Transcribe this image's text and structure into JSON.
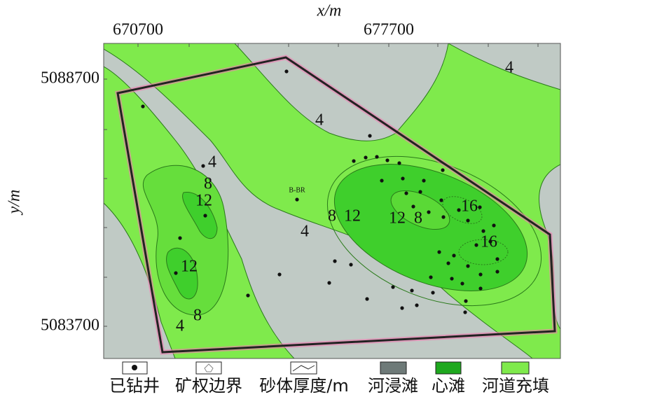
{
  "axes": {
    "x_label": "x/m",
    "x_ticks": [
      "670700",
      "677700"
    ],
    "y_label": "y/m",
    "y_ticks": [
      "5088700",
      "5083700"
    ]
  },
  "contour_labels": [
    "4",
    "4",
    "4",
    "8",
    "12",
    "4",
    "8",
    "12",
    "12",
    "8",
    "16",
    "16",
    "12",
    "8",
    "4"
  ],
  "well_label": "B-BR",
  "legend": [
    "已钻井",
    "矿权边界",
    "砂体厚度/m",
    "河浸滩",
    "心滩",
    "河道充填"
  ]
}
